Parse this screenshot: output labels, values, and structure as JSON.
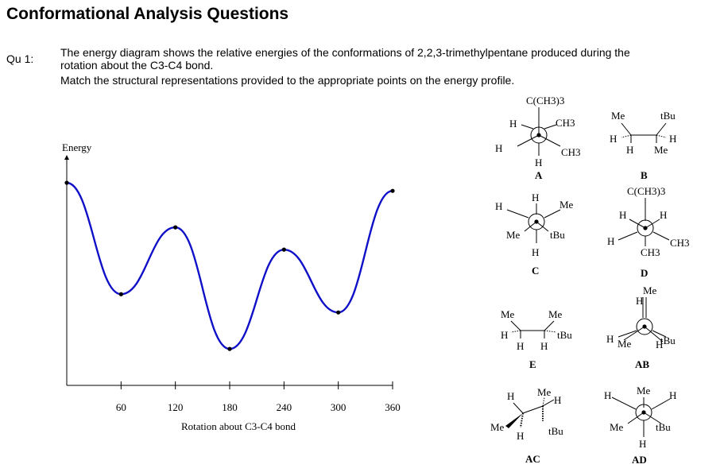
{
  "page_title": "Conformational Analysis Questions",
  "question": {
    "label": "Qu 1:",
    "line1": "The energy diagram shows the relative energies of the conformations of 2,2,3-trimethylpentane produced during the",
    "line2": "rotation about the C3-C4 bond.",
    "line3": "Match the structural representations provided to the appropriate points on the energy profile."
  },
  "chart_data": {
    "type": "line",
    "ylabel": "Energy",
    "xlabel": "Rotation about C3-C4 bond",
    "xticks": [
      60,
      120,
      180,
      240,
      300,
      360
    ],
    "xlim": [
      0,
      360
    ],
    "grid": false,
    "legend": "none",
    "curve_color": "#1010c8",
    "series": [
      {
        "x": [
          0,
          60,
          120,
          180,
          240,
          300,
          360
        ],
        "y": [
          10.0,
          4.5,
          7.8,
          1.8,
          6.7,
          3.6,
          9.6
        ]
      }
    ]
  },
  "structures": {
    "A": {
      "label": "A",
      "front_top": "C(CH3)3",
      "back_upper_left": "H",
      "back_upper_right": "CH3",
      "front_left": "H",
      "front_right": "CH3",
      "back_bottom": "H"
    },
    "B": {
      "label": "B",
      "top_left": "Me",
      "top_right": "tBu",
      "mid_left": "H",
      "mid_right": "H",
      "bottom_left": "H",
      "bottom_right": "Me"
    },
    "C": {
      "label": "C",
      "top": "H",
      "left": "H",
      "right": "Me",
      "lower_left": "Me",
      "lower_right": "tBu",
      "bottom": "H"
    },
    "D": {
      "label": "D",
      "top": "C(CH3)3",
      "upper_left": "H",
      "upper_right": "H",
      "left": "H",
      "right": "CH3",
      "bottom": "CH3"
    },
    "E": {
      "label": "E",
      "top_left": "Me",
      "top_right": "Me",
      "mid_left": "H",
      "mid_right": "tBu",
      "bottom_left": "H",
      "bottom_right": "H"
    },
    "AB": {
      "label": "AB",
      "top": "Me",
      "top_h": "H",
      "left_h": "H",
      "left_me": "Me",
      "right": "tBu",
      "right_h": "H"
    },
    "AC": {
      "label": "AC",
      "left_top": "H",
      "top": "Me",
      "top_right": "H",
      "left_bottom": "Me",
      "bottom": "H",
      "right": "tBu"
    },
    "AD": {
      "label": "AD",
      "top": "Me",
      "upper_left": "H",
      "upper_right": "H",
      "lower_left": "Me",
      "lower_right": "tBu",
      "bottom": "H"
    }
  }
}
